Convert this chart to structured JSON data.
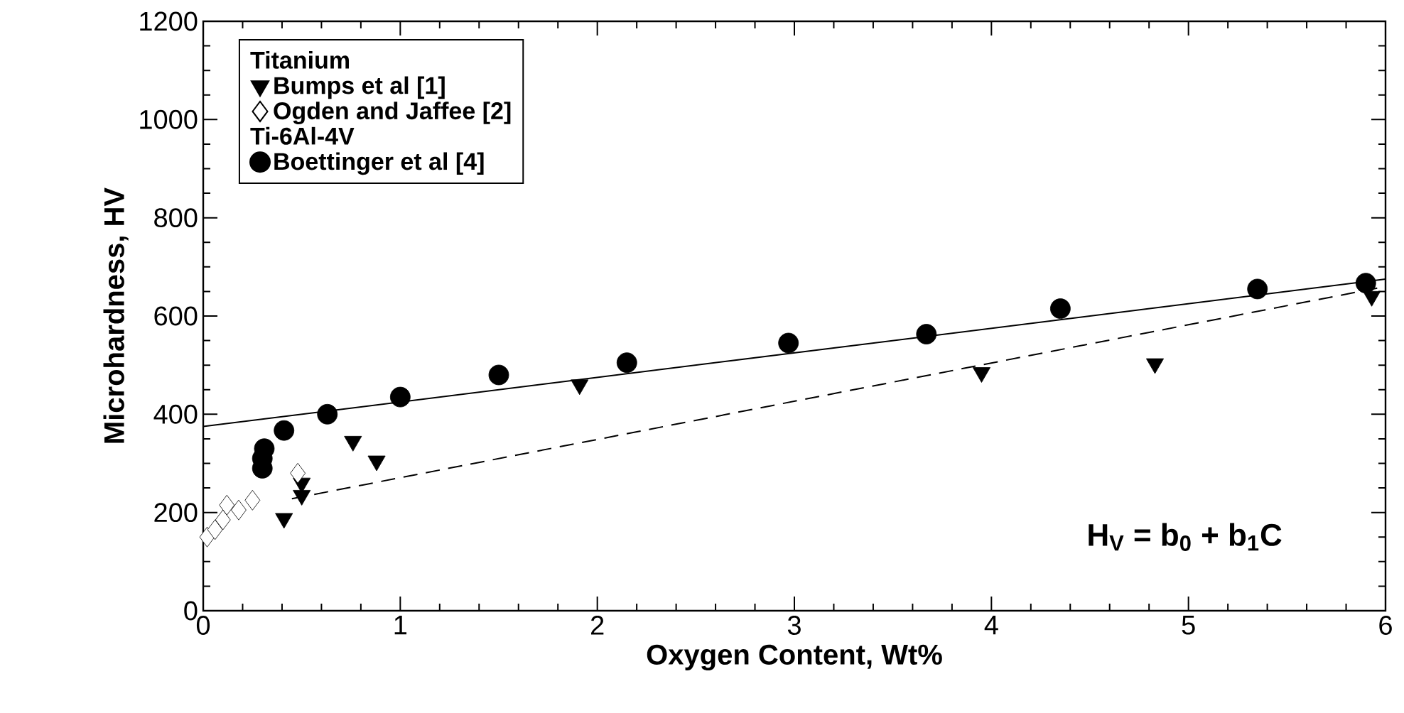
{
  "chart_data": {
    "type": "scatter",
    "xlabel": "Oxygen Content, Wt%",
    "ylabel": "Microhardness, HV",
    "legend_title": "Titanium",
    "xlim": [
      0,
      6
    ],
    "ylim": [
      0,
      1200
    ],
    "xticks": [
      0,
      1,
      2,
      3,
      4,
      5,
      6
    ],
    "yticks": [
      0,
      200,
      400,
      600,
      800,
      1000,
      1200
    ],
    "legend": "top left",
    "grid": false,
    "series": [
      {
        "name": "Bumps et al [1]",
        "color": "#000000",
        "marker": "triangle",
        "x": [
          0.41,
          0.5,
          0.5,
          0.76,
          0.88,
          1.91,
          3.95,
          4.83,
          5.93
        ],
        "values": [
          188,
          235,
          260,
          345,
          305,
          460,
          485,
          503,
          640
        ]
      },
      {
        "name": "Ogden and Jaffee [2]",
        "color": "#000000",
        "marker": "diamond",
        "x": [
          0.02,
          0.06,
          0.1,
          0.12,
          0.18,
          0.25,
          0.3,
          0.48
        ],
        "values": [
          150,
          165,
          185,
          215,
          205,
          225,
          null,
          280
        ]
      },
      {
        "name": "Boettinger et al [4]",
        "color": "#000000",
        "marker": "circle",
        "x": [
          0.3,
          0.3,
          0.31,
          0.41,
          0.63,
          1.0,
          1.5,
          2.15,
          2.97,
          3.67,
          4.35,
          5.35,
          5.9
        ],
        "values": [
          290,
          310,
          330,
          367,
          400,
          435,
          480,
          505,
          545,
          563,
          615,
          655,
          667
        ]
      },
      {
        "type": "line",
        "color": "#000000",
        "marker": "none",
        "line_style": "solid",
        "x": [
          0,
          6
        ],
        "values": [
          375,
          675
        ]
      },
      {
        "type": "line",
        "color": "#000000",
        "marker": "none",
        "line_style": "dashed",
        "x": [
          0.45,
          6
        ],
        "values": [
          228,
          660
        ]
      }
    ],
    "annotations": [
      "Ti-6Al-4V",
      "H$_{V}$ = b$_{0}$ + b$_{1}$C"
    ]
  }
}
